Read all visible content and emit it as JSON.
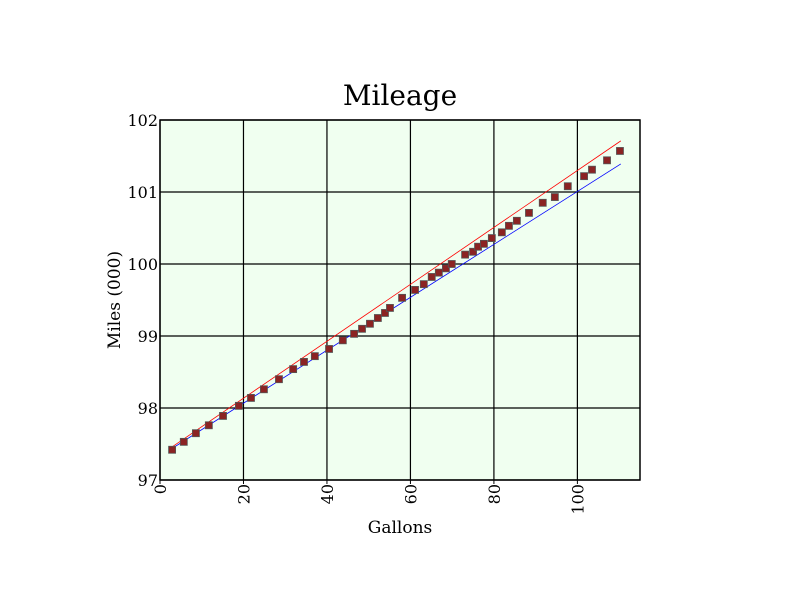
{
  "chart_data": {
    "type": "scatter",
    "title": "Mileage",
    "xlabel": "Gallons",
    "ylabel": "Miles (000)",
    "xlim": [
      0,
      115
    ],
    "ylim": [
      97,
      102
    ],
    "xticks": [
      0,
      20,
      40,
      60,
      80,
      100
    ],
    "yticks": [
      97,
      98,
      99,
      100,
      101,
      102
    ],
    "grid": true,
    "colors": {
      "background": "#f0fff0",
      "marker": "#8b2323",
      "marker_edge": "#555555",
      "upper_line": "#ff0000",
      "lower_line": "#0000ff"
    },
    "points": [
      [
        2.9,
        97.42
      ],
      [
        5.7,
        97.53
      ],
      [
        8.6,
        97.65
      ],
      [
        11.7,
        97.76
      ],
      [
        15.1,
        97.89
      ],
      [
        18.9,
        98.03
      ],
      [
        21.8,
        98.14
      ],
      [
        24.9,
        98.26
      ],
      [
        28.5,
        98.4
      ],
      [
        31.9,
        98.54
      ],
      [
        34.5,
        98.64
      ],
      [
        37.1,
        98.72
      ],
      [
        40.5,
        98.82
      ],
      [
        43.8,
        98.94
      ],
      [
        46.5,
        99.03
      ],
      [
        48.4,
        99.1
      ],
      [
        50.3,
        99.17
      ],
      [
        52.2,
        99.25
      ],
      [
        53.9,
        99.32
      ],
      [
        55.1,
        99.39
      ],
      [
        58.0,
        99.53
      ],
      [
        61.1,
        99.64
      ],
      [
        63.2,
        99.72
      ],
      [
        65.1,
        99.82
      ],
      [
        66.8,
        99.88
      ],
      [
        68.5,
        99.94
      ],
      [
        69.9,
        100.0
      ],
      [
        73.1,
        100.13
      ],
      [
        75.0,
        100.17
      ],
      [
        76.2,
        100.24
      ],
      [
        77.6,
        100.28
      ],
      [
        79.5,
        100.36
      ],
      [
        81.9,
        100.44
      ],
      [
        83.6,
        100.53
      ],
      [
        85.5,
        100.6
      ],
      [
        88.4,
        100.71
      ],
      [
        91.7,
        100.85
      ],
      [
        94.6,
        100.93
      ],
      [
        97.7,
        101.08
      ],
      [
        101.6,
        101.22
      ],
      [
        103.5,
        101.31
      ],
      [
        107.1,
        101.44
      ],
      [
        110.2,
        101.57
      ]
    ],
    "lines": [
      {
        "color": "#ff0000",
        "x": [
          2.4,
          110.4
        ],
        "y": [
          97.44,
          101.71
        ]
      },
      {
        "color": "#0000ff",
        "x": [
          2.4,
          110.4
        ],
        "y": [
          97.42,
          101.39
        ]
      }
    ]
  }
}
